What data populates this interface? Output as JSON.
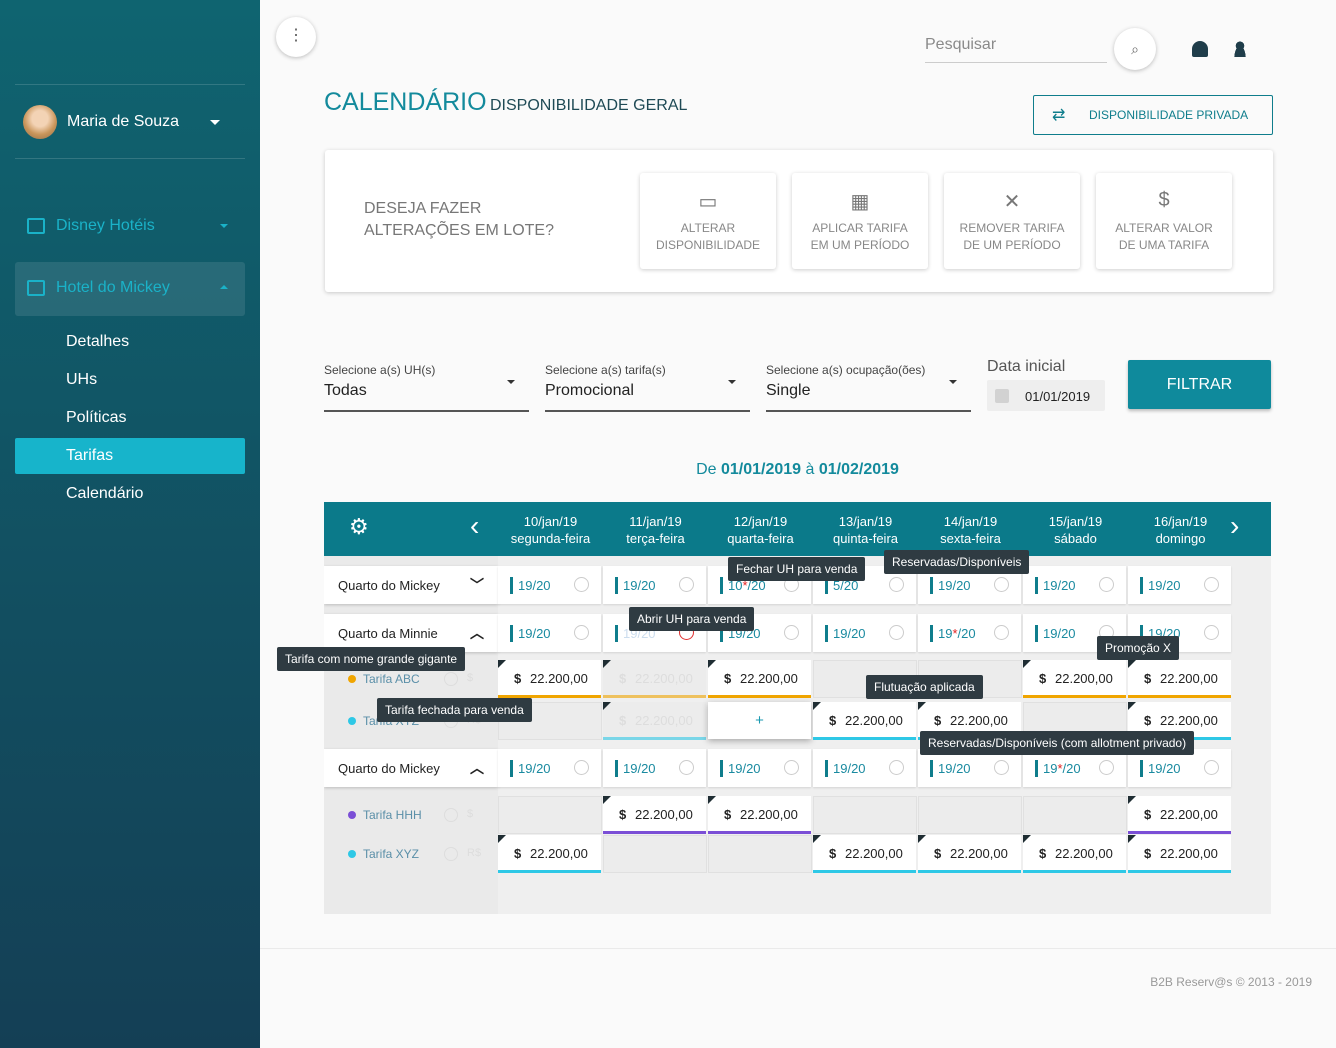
{
  "sidebar": {
    "user": "Maria de Souza",
    "menu": [
      "Disney Hotéis",
      "Hotel do Mickey"
    ],
    "submenu": [
      "Detalhes",
      "UHs",
      "Políticas",
      "Tarifas",
      "Calendário"
    ],
    "active": 3
  },
  "header": {
    "search": "Pesquisar"
  },
  "page": {
    "title": "CALENDÁRIO",
    "subtitle": "DISPONIBILIDADE GERAL",
    "private_button": "DISPONIBILIDADE PRIVADA"
  },
  "batch": {
    "prompt": [
      "DESEJA FAZER",
      "ALTERAÇÕES EM LOTE?"
    ],
    "actions": [
      [
        "ALTERAR",
        "DISPONIBILIDADE"
      ],
      [
        "APLICAR TARIFA",
        "EM UM PERÍODO"
      ],
      [
        "REMOVER TARIFA",
        "DE UM PERÍODO"
      ],
      [
        "ALTERAR VALOR",
        "DE UMA TARIFA"
      ]
    ]
  },
  "filters": {
    "selects": [
      {
        "label": "Selecione a(s) UH(s)",
        "value": "Todas"
      },
      {
        "label": "Selecione a(s) tarifa(s)",
        "value": "Promocional"
      },
      {
        "label": "Selecione a(s) ocupação(ões)",
        "value": "Single"
      }
    ],
    "date": {
      "label": "Data inicial",
      "value": "01/01/2019"
    },
    "button": "FILTRAR"
  },
  "range": {
    "from_word": "De",
    "from": "01/01/2019",
    "to_word": "à",
    "to": "01/02/2019"
  },
  "calendar": {
    "currency_symbol": "$",
    "days": [
      {
        "date": "10/jan/19",
        "weekday": "segunda-feira"
      },
      {
        "date": "11/jan/19",
        "weekday": "terça-feira"
      },
      {
        "date": "12/jan/19",
        "weekday": "quarta-feira"
      },
      {
        "date": "13/jan/19",
        "weekday": "quinta-feira"
      },
      {
        "date": "14/jan/19",
        "weekday": "sexta-feira"
      },
      {
        "date": "15/jan/19",
        "weekday": "sábado"
      },
      {
        "date": "16/jan/19",
        "weekday": "domingo"
      }
    ],
    "groups": [
      {
        "room": "Quarto do Mickey",
        "open": false,
        "availability": [
          "19/20",
          "19/20",
          "10*/20",
          "5/20",
          "19/20",
          "19/20",
          "19/20"
        ],
        "closed": [],
        "rates": []
      },
      {
        "room": "Quarto da Minnie",
        "open": true,
        "availability": [
          "19/20",
          "19/20",
          "19/20",
          "19/20",
          "19*/20",
          "19/20",
          "19/20"
        ],
        "closed": [
          1
        ],
        "rates": [
          {
            "name": "Tarifa ABC",
            "color": "#f0a500",
            "currency": "$",
            "cells": [
              "22.200,00",
              "22.200,00",
              "22.200,00",
              null,
              null,
              "22.200,00",
              "22.200,00"
            ],
            "closed": [
              1
            ]
          },
          {
            "name": "Tarifa XYZ",
            "color": "#2ec8e6",
            "currency": "R$",
            "cells": [
              null,
              "22.200,00",
              "+",
              "22.200,00",
              "22.200,00",
              null,
              "22.200,00"
            ],
            "closed": [
              1
            ]
          }
        ]
      },
      {
        "room": "Quarto do Mickey",
        "open": true,
        "availability": [
          "19/20",
          "19/20",
          "19/20",
          "19/20",
          "19/20",
          "19*/20",
          "19/20"
        ],
        "closed": [],
        "rates": [
          {
            "name": "Tarifa HHH",
            "color": "#7b4fd6",
            "currency": "$",
            "cells": [
              null,
              "22.200,00",
              "22.200,00",
              null,
              null,
              null,
              "22.200,00"
            ],
            "closed": []
          },
          {
            "name": "Tarifa XYZ",
            "color": "#2ec8e6",
            "currency": "R$",
            "cells": [
              "22.200,00",
              null,
              null,
              "22.200,00",
              "22.200,00",
              "22.200,00",
              "22.200,00"
            ],
            "closed": []
          }
        ]
      }
    ]
  },
  "tooltips": [
    "Fechar UH para venda",
    "Reservadas/Disponíveis",
    "Abrir UH para venda",
    "Tarifa com nome grande gigante",
    "Promoção X",
    "Flutuação aplicada",
    "Tarifa fechada para venda",
    "Reservadas/Disponíveis (com allotment privado)"
  ],
  "footer": "B2B Reserv@s © 2013 - 2019"
}
